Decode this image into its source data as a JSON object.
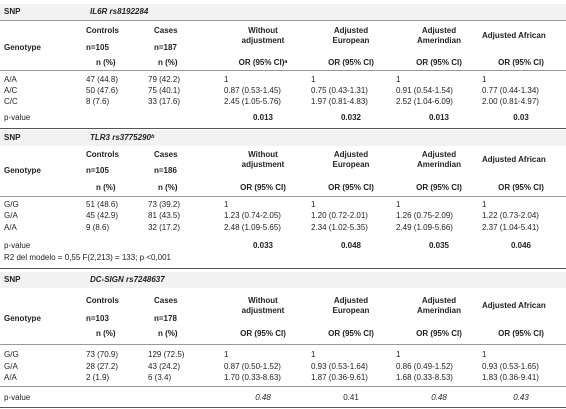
{
  "sections": [
    {
      "snp_label": "SNP",
      "gene": "IL6R rs8192284",
      "genotype_label": "Genotype",
      "controls_label": "Controls",
      "controls_n": "n=105",
      "cases_label": "Cases",
      "cases_n": "n=187",
      "col3": [
        "Without",
        "adjustment"
      ],
      "col4": [
        "Adjusted",
        "European"
      ],
      "col5": [
        "Adjusted",
        "Amerindian"
      ],
      "col6": "Adjusted African",
      "n_pct": "n (%)",
      "or_a": "OR (95% CI)ᵃ",
      "or": "OR (95% CI)",
      "rows": [
        {
          "g": "A/A",
          "ctrl": "47 (44.8)",
          "case": "79 (42.2)",
          "c3": "1",
          "c4": "1",
          "c5": "1",
          "c6": "1"
        },
        {
          "g": "A/C",
          "ctrl": "50 (47.6)",
          "case": "75 (40.1)",
          "c3": "0.87 (0.53-1.45)",
          "c4": "0.75 (0.43-1.31)",
          "c5": "0.91 (0.54-1.54)",
          "c6": "0.77 (0.44-1.34)"
        },
        {
          "g": "C/C",
          "ctrl": "8 (7.6)",
          "case": "33 (17.6)",
          "c3": "2.45 (1.05-5.76)",
          "c4": "1.97 (0.81-4.83)",
          "c5": "2.52 (1.04-6.09)",
          "c6": "2.00 (0.81-4.97)"
        }
      ],
      "pvalue_label": "p-value",
      "p": [
        "0.013",
        "0.032",
        "0.013",
        "0.03"
      ]
    },
    {
      "snp_label": "SNP",
      "gene": "TLR3 rs3775290ᵇ",
      "genotype_label": "Genotype",
      "controls_label": "Controls",
      "controls_n": "n=105",
      "cases_label": "Cases",
      "cases_n": "n=186",
      "col3": [
        "Without",
        "adjustment"
      ],
      "col4": [
        "Adjusted",
        "European"
      ],
      "col5": [
        "Adjusted",
        "Amerindian"
      ],
      "col6": "Adjusted African",
      "n_pct": "n (%)",
      "or": "OR (95% CI)",
      "rows": [
        {
          "g": "G/G",
          "ctrl": "51 (48.6)",
          "case": "73 (39.2)",
          "c3": "1",
          "c4": "1",
          "c5": "1",
          "c6": "1"
        },
        {
          "g": "G/A",
          "ctrl": "45 (42.9)",
          "case": "81 (43.5)",
          "c3": "1.23 (0.74-2.05)",
          "c4": "1.20 (0.72-2.01)",
          "c5": "1.26 (0.75-2.09)",
          "c6": "1.22 (0.73-2.04)"
        },
        {
          "g": "A/A",
          "ctrl": "9 (8.6)",
          "case": "32 (17.2)",
          "c3": "2.48 (1.09-5.65)",
          "c4": "2.34 (1.02-5.35)",
          "c5": "2.49 (1.09-5.66)",
          "c6": "2.37 (1.04-5.41)"
        }
      ],
      "pvalue_label": "p-value",
      "p": [
        "0.033",
        "0.048",
        "0.035",
        "0.046"
      ],
      "note": "R2 del modelo = 0,55 F(2,213) = 133; p <0,001"
    },
    {
      "snp_label": "SNP",
      "gene": "DC-SIGN rs7248637",
      "genotype_label": "Genotype",
      "controls_label": "Controls",
      "controls_n": "n=103",
      "cases_label": "Cases",
      "cases_n": "n=178",
      "col3": [
        "Without",
        "adjustment"
      ],
      "col4": [
        "Adjusted",
        "European"
      ],
      "col5": [
        "Adjusted",
        "Amerindian"
      ],
      "col6": "Adjusted African",
      "n_pct": "n (%)",
      "or": "OR (95% CI)",
      "rows": [
        {
          "g": "G/G",
          "ctrl": "73 (70.9)",
          "case": "129 (72.5)",
          "c3": "1",
          "c4": "1",
          "c5": "1",
          "c6": "1"
        },
        {
          "g": "G/A",
          "ctrl": "28 (27.2)",
          "case": "43 (24.2)",
          "c3": "0.87 (0.50-1.52)",
          "c4": "0.93 (0.53-1.64)",
          "c5": "0.86 (0.49-1.52)",
          "c6": "0.93 (0.53-1.65)"
        },
        {
          "g": "A/A",
          "ctrl": "2 (1.9)",
          "case": "6 (3.4)",
          "c3": "1.70 (0.33-8.63)",
          "c4": "1.87 (0.36-9.61)",
          "c5": "1.68 (0.33-8.53)",
          "c6": "1.83 (0.36-9.41)"
        }
      ],
      "pvalue_label": "p-value",
      "p": [
        "0.48",
        "0.41",
        "0.48",
        "0.43"
      ]
    }
  ]
}
